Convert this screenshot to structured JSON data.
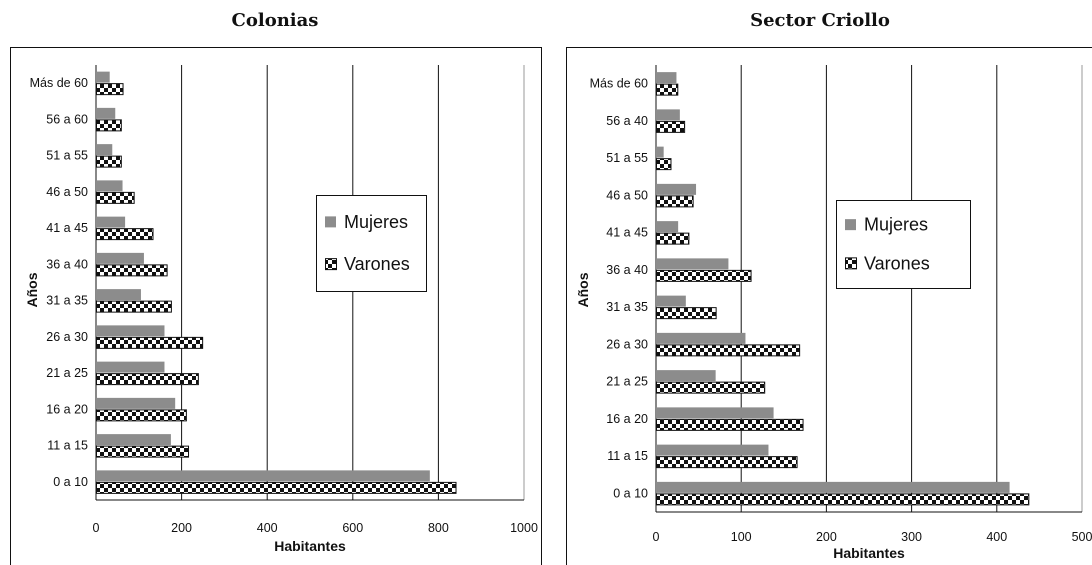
{
  "chart_data": [
    {
      "type": "bar",
      "orientation": "horizontal",
      "title": "Colonias",
      "xlabel": "Habitantes",
      "ylabel": "Años",
      "xlim": [
        0,
        1000
      ],
      "xticks": [
        "0",
        "200",
        "400",
        "600",
        "800",
        "1000"
      ],
      "categories": [
        "0 a 10",
        "11 a 15",
        "16 a 20",
        "21 a 25",
        "26 a 30",
        "31 a 35",
        "36 a 40",
        "41 a 45",
        "46 a 50",
        "51 a 55",
        "56 a 60",
        "Más de 60"
      ],
      "series": [
        {
          "name": "Mujeres",
          "values": [
            780,
            175,
            185,
            160,
            160,
            105,
            112,
            68,
            62,
            38,
            45,
            32
          ]
        },
        {
          "name": "Varones",
          "values": [
            840,
            215,
            210,
            238,
            248,
            175,
            165,
            132,
            88,
            58,
            58,
            62
          ]
        }
      ],
      "legend": "center-right",
      "grid": "vertical"
    },
    {
      "type": "bar",
      "orientation": "horizontal",
      "title": "Sector Criollo",
      "xlabel": "Habitantes",
      "ylabel": "Años",
      "xlim": [
        0,
        500
      ],
      "xticks": [
        "0",
        "100",
        "200",
        "300",
        "400",
        "500"
      ],
      "categories": [
        "0 a 10",
        "11 a 15",
        "16 a 20",
        "21 a 25",
        "26 a 30",
        "31 a 35",
        "36 a 40",
        "41 a 45",
        "46 a 50",
        "51 a 55",
        "56 a 40",
        "Más de 60"
      ],
      "series": [
        {
          "name": "Mujeres",
          "values": [
            415,
            132,
            138,
            70,
            105,
            35,
            85,
            26,
            47,
            9,
            28,
            24
          ]
        },
        {
          "name": "Varones",
          "values": [
            437,
            165,
            172,
            127,
            168,
            70,
            111,
            38,
            43,
            17,
            33,
            25
          ]
        }
      ],
      "legend": "center",
      "grid": "vertical"
    }
  ],
  "colors": {
    "mujeres": "#8c8c8c",
    "varones_pattern": "#111111",
    "grid": "#111111"
  }
}
